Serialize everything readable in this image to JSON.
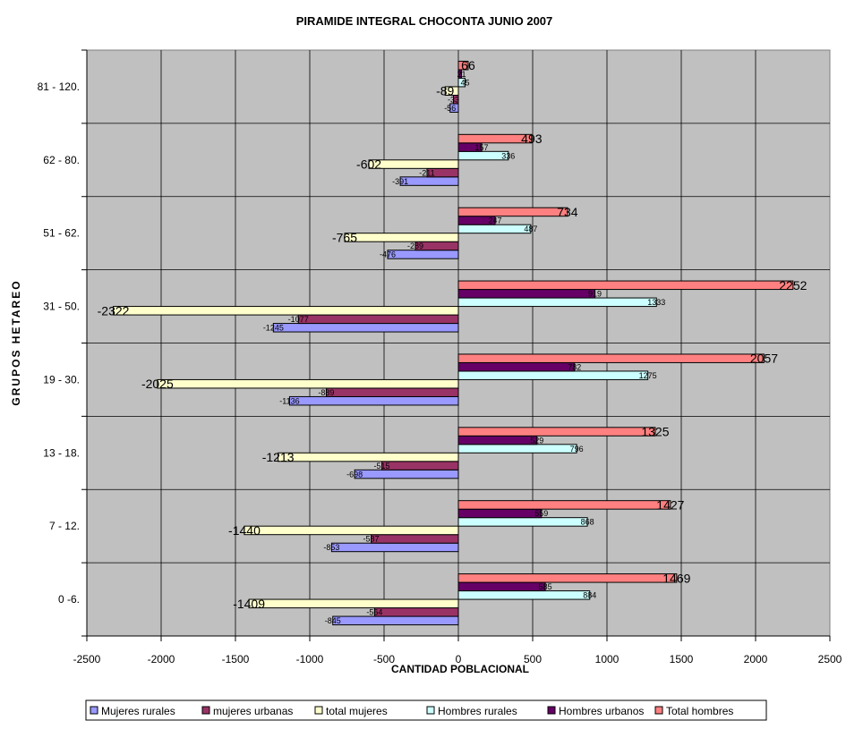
{
  "chart_data": {
    "type": "bar",
    "orientation": "horizontal",
    "title": "PIRAMIDE INTEGRAL CHOCONTA JUNIO 2007",
    "xlabel": "CANTIDAD POBLACIONAL",
    "ylabel": "GRUPOS HETAREO",
    "xlim": [
      -2500,
      2500
    ],
    "xticks": [
      -2500,
      -2000,
      -1500,
      -1000,
      -500,
      0,
      500,
      1000,
      1500,
      2000,
      2500
    ],
    "categories": [
      "0 -6.",
      "7 - 12.",
      "13 - 18.",
      "19 - 30.",
      "31 - 50.",
      "51 - 62.",
      "62 - 80.",
      "81 - 120."
    ],
    "grid": true,
    "legend_position": "bottom",
    "series": [
      {
        "name": "Mujeres rurales",
        "color": "#9999ff",
        "values": [
          -845,
          -853,
          -698,
          -1136,
          -1245,
          -476,
          -391,
          -56
        ]
      },
      {
        "name": "mujeres urbanas",
        "color": "#993366",
        "values": [
          -564,
          -587,
          -515,
          -889,
          -1077,
          -289,
          -211,
          -33
        ]
      },
      {
        "name": "total mujeres",
        "color": "#ffffcc",
        "values": [
          -1409,
          -1440,
          -1213,
          -2025,
          -2322,
          -765,
          -602,
          -89
        ]
      },
      {
        "name": "Hombres rurales",
        "color": "#ccffff",
        "values": [
          884,
          868,
          796,
          1275,
          1333,
          487,
          336,
          45
        ]
      },
      {
        "name": "Hombres urbanos",
        "color": "#660066",
        "values": [
          585,
          559,
          529,
          782,
          919,
          247,
          157,
          21
        ]
      },
      {
        "name": "Total hombres",
        "color": "#ff8080",
        "values": [
          1469,
          1427,
          1325,
          2057,
          2252,
          734,
          493,
          66
        ]
      }
    ]
  }
}
